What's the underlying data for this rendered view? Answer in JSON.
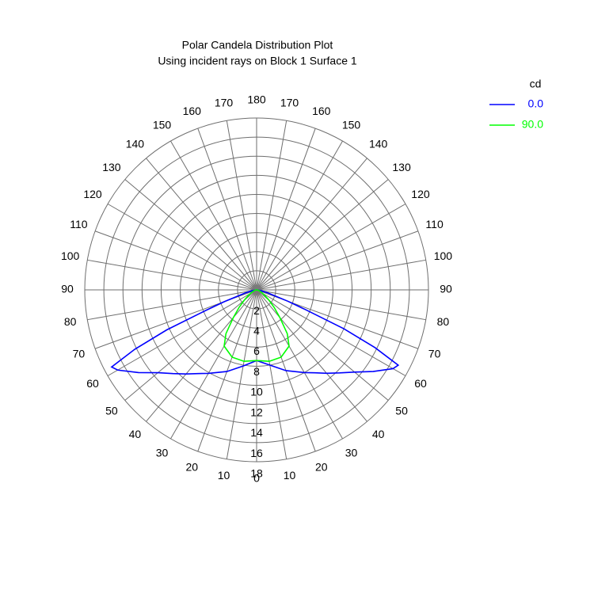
{
  "chart_data": {
    "type": "polar",
    "title": "Polar Candela Distribution Plot",
    "subtitle": "Using incident rays on Block 1 Surface 1",
    "legend_title": "cd",
    "legend_position": "upper right",
    "rlim": [
      0,
      18
    ],
    "rticks": [
      2,
      4,
      6,
      8,
      10,
      12,
      14,
      16,
      18
    ],
    "theta_ticks": [
      0,
      10,
      20,
      30,
      40,
      50,
      60,
      70,
      80,
      90,
      100,
      110,
      120,
      130,
      140,
      150,
      160,
      170,
      180
    ],
    "theta": [
      -90,
      -80,
      -75,
      -70,
      -68,
      -66,
      -64,
      -62,
      -60,
      -55,
      -50,
      -45,
      -40,
      -35,
      -30,
      -20,
      -10,
      0,
      10,
      20,
      30,
      35,
      40,
      45,
      50,
      55,
      60,
      62,
      64,
      66,
      68,
      70,
      75,
      80,
      90
    ],
    "series": [
      {
        "name": "0.0",
        "color": "#0000ff",
        "values": [
          0,
          0.4,
          1.2,
          3.6,
          5.7,
          10.3,
          14.2,
          17.2,
          16.8,
          15.1,
          13.5,
          12.4,
          11.5,
          10.7,
          10.1,
          9.1,
          8.1,
          7.4,
          8.0,
          9.0,
          10.0,
          10.6,
          11.4,
          12.3,
          13.4,
          14.9,
          16.5,
          16.8,
          13.8,
          10.0,
          5.5,
          3.5,
          1.2,
          0.4,
          0
        ]
      },
      {
        "name": "90.0",
        "color": "#00ff00",
        "values": [
          0,
          0.1,
          0.2,
          0.3,
          0.35,
          0.4,
          0.5,
          0.6,
          0.7,
          1.1,
          1.7,
          2.6,
          3.8,
          5.6,
          6.8,
          7.5,
          7.6,
          7.4,
          7.6,
          7.5,
          6.8,
          5.6,
          3.8,
          2.6,
          1.7,
          1.1,
          0.7,
          0.6,
          0.5,
          0.4,
          0.35,
          0.3,
          0.2,
          0.1,
          0
        ]
      }
    ]
  }
}
